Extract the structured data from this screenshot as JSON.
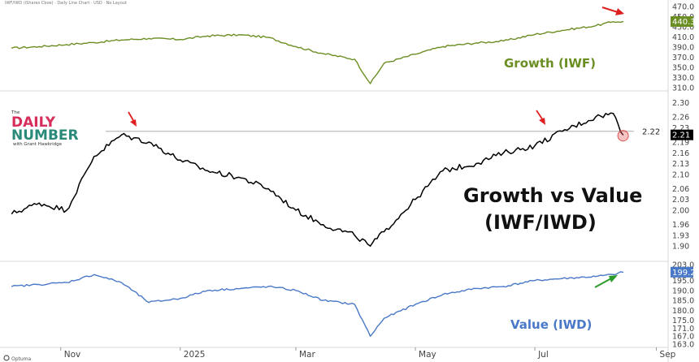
{
  "header": {
    "title": "IWF/IWD (iShares Cboe) · Daily Line Chart · USD · No Layout"
  },
  "logo": {
    "the": "The",
    "word1": "DAILY",
    "word2": "NUMBER",
    "tagline": "with Grant Hawkridge"
  },
  "footer": {
    "brand": "Optuma"
  },
  "colors": {
    "growth": "#6b8e23",
    "ratio": "#000000",
    "value": "#4a78c8",
    "red_arrow": "#e02020",
    "green_arrow": "#2a9a2a",
    "grid": "#dddddd",
    "level_line": "#bbbbbb"
  },
  "chart_data": [
    {
      "type": "line",
      "series_ticker": "IWF",
      "label": "Growth (IWF)",
      "ylim": [
        310,
        470
      ],
      "y_ticks": [
        "470.0",
        "450.0",
        "430.0",
        "410.0",
        "390.0",
        "370.0",
        "350.0",
        "330.0",
        "310.0"
      ],
      "last_value": "440.3",
      "x": [
        "2024-10-07",
        "2024-10-21",
        "2024-11-04",
        "2024-11-18",
        "2024-12-02",
        "2024-12-16",
        "2025-01-01",
        "2025-01-15",
        "2025-02-01",
        "2025-02-15",
        "2025-03-01",
        "2025-03-15",
        "2025-03-31",
        "2025-04-08",
        "2025-04-15",
        "2025-05-01",
        "2025-05-15",
        "2025-06-01",
        "2025-06-15",
        "2025-07-01",
        "2025-07-15",
        "2025-08-01",
        "2025-08-10",
        "2025-08-15"
      ],
      "y": [
        388,
        391,
        395,
        399,
        404,
        407,
        405,
        412,
        414,
        409,
        391,
        377,
        366,
        318,
        358,
        376,
        391,
        398,
        402,
        415,
        423,
        432,
        440,
        440.3
      ]
    },
    {
      "type": "line",
      "series_ticker": "IWF/IWD",
      "label": "Growth vs Value (IWF/IWD)",
      "title_line1": "Growth vs Value",
      "title_line2": "(IWF/IWD)",
      "ylim": [
        1.88,
        2.31
      ],
      "y_ticks": [
        "2.30",
        "2.26",
        "2.23",
        "2.19",
        "2.16",
        "2.13",
        "2.10",
        "2.06",
        "2.03",
        "2.00",
        "1.96",
        "1.93",
        "1.90"
      ],
      "reference_level": 2.22,
      "reference_label": "2.22",
      "last_value": "2.21",
      "x": [
        "2024-10-07",
        "2024-10-21",
        "2024-11-04",
        "2024-11-18",
        "2024-12-02",
        "2024-12-16",
        "2025-01-01",
        "2025-01-15",
        "2025-02-01",
        "2025-02-15",
        "2025-03-01",
        "2025-03-15",
        "2025-03-31",
        "2025-04-08",
        "2025-04-15",
        "2025-05-01",
        "2025-05-15",
        "2025-06-01",
        "2025-06-15",
        "2025-07-01",
        "2025-07-15",
        "2025-08-01",
        "2025-08-10",
        "2025-08-15"
      ],
      "y": [
        1.99,
        2.02,
        2.0,
        2.15,
        2.21,
        2.19,
        2.14,
        2.11,
        2.09,
        2.06,
        2.0,
        1.96,
        1.93,
        1.9,
        1.94,
        2.03,
        2.11,
        2.13,
        2.16,
        2.18,
        2.22,
        2.26,
        2.27,
        2.21
      ]
    },
    {
      "type": "line",
      "series_ticker": "IWD",
      "label": "Value (IWD)",
      "ylim": [
        163,
        203
      ],
      "y_ticks": [
        "203.0",
        "199.2",
        "195.0",
        "190.0",
        "185.0",
        "180.0",
        "175.0",
        "171.0",
        "167.0",
        "163.0"
      ],
      "last_value": "199.2",
      "x": [
        "2024-10-07",
        "2024-10-21",
        "2024-11-04",
        "2024-11-18",
        "2024-12-02",
        "2024-12-16",
        "2025-01-01",
        "2025-01-15",
        "2025-02-01",
        "2025-02-15",
        "2025-03-01",
        "2025-03-15",
        "2025-03-31",
        "2025-04-08",
        "2025-04-15",
        "2025-05-01",
        "2025-05-15",
        "2025-06-01",
        "2025-06-15",
        "2025-07-01",
        "2025-07-15",
        "2025-08-01",
        "2025-08-10",
        "2025-08-15"
      ],
      "y": [
        192,
        193,
        194,
        198,
        194,
        184,
        186,
        190,
        191,
        192,
        190,
        185,
        183,
        167,
        176,
        183,
        188,
        191,
        192,
        195,
        196,
        197,
        198,
        199.2
      ]
    }
  ],
  "x_axis": {
    "range": [
      "2024-10-01",
      "2025-09-07"
    ],
    "ticks": [
      {
        "label": "Nov",
        "date": "2024-11-01"
      },
      {
        "label": "2025",
        "date": "2025-01-01"
      },
      {
        "label": "Mar",
        "date": "2025-03-01"
      },
      {
        "label": "May",
        "date": "2025-05-01"
      },
      {
        "label": "Jul",
        "date": "2025-07-01"
      },
      {
        "label": "Sep",
        "date": "2025-09-01"
      }
    ]
  }
}
